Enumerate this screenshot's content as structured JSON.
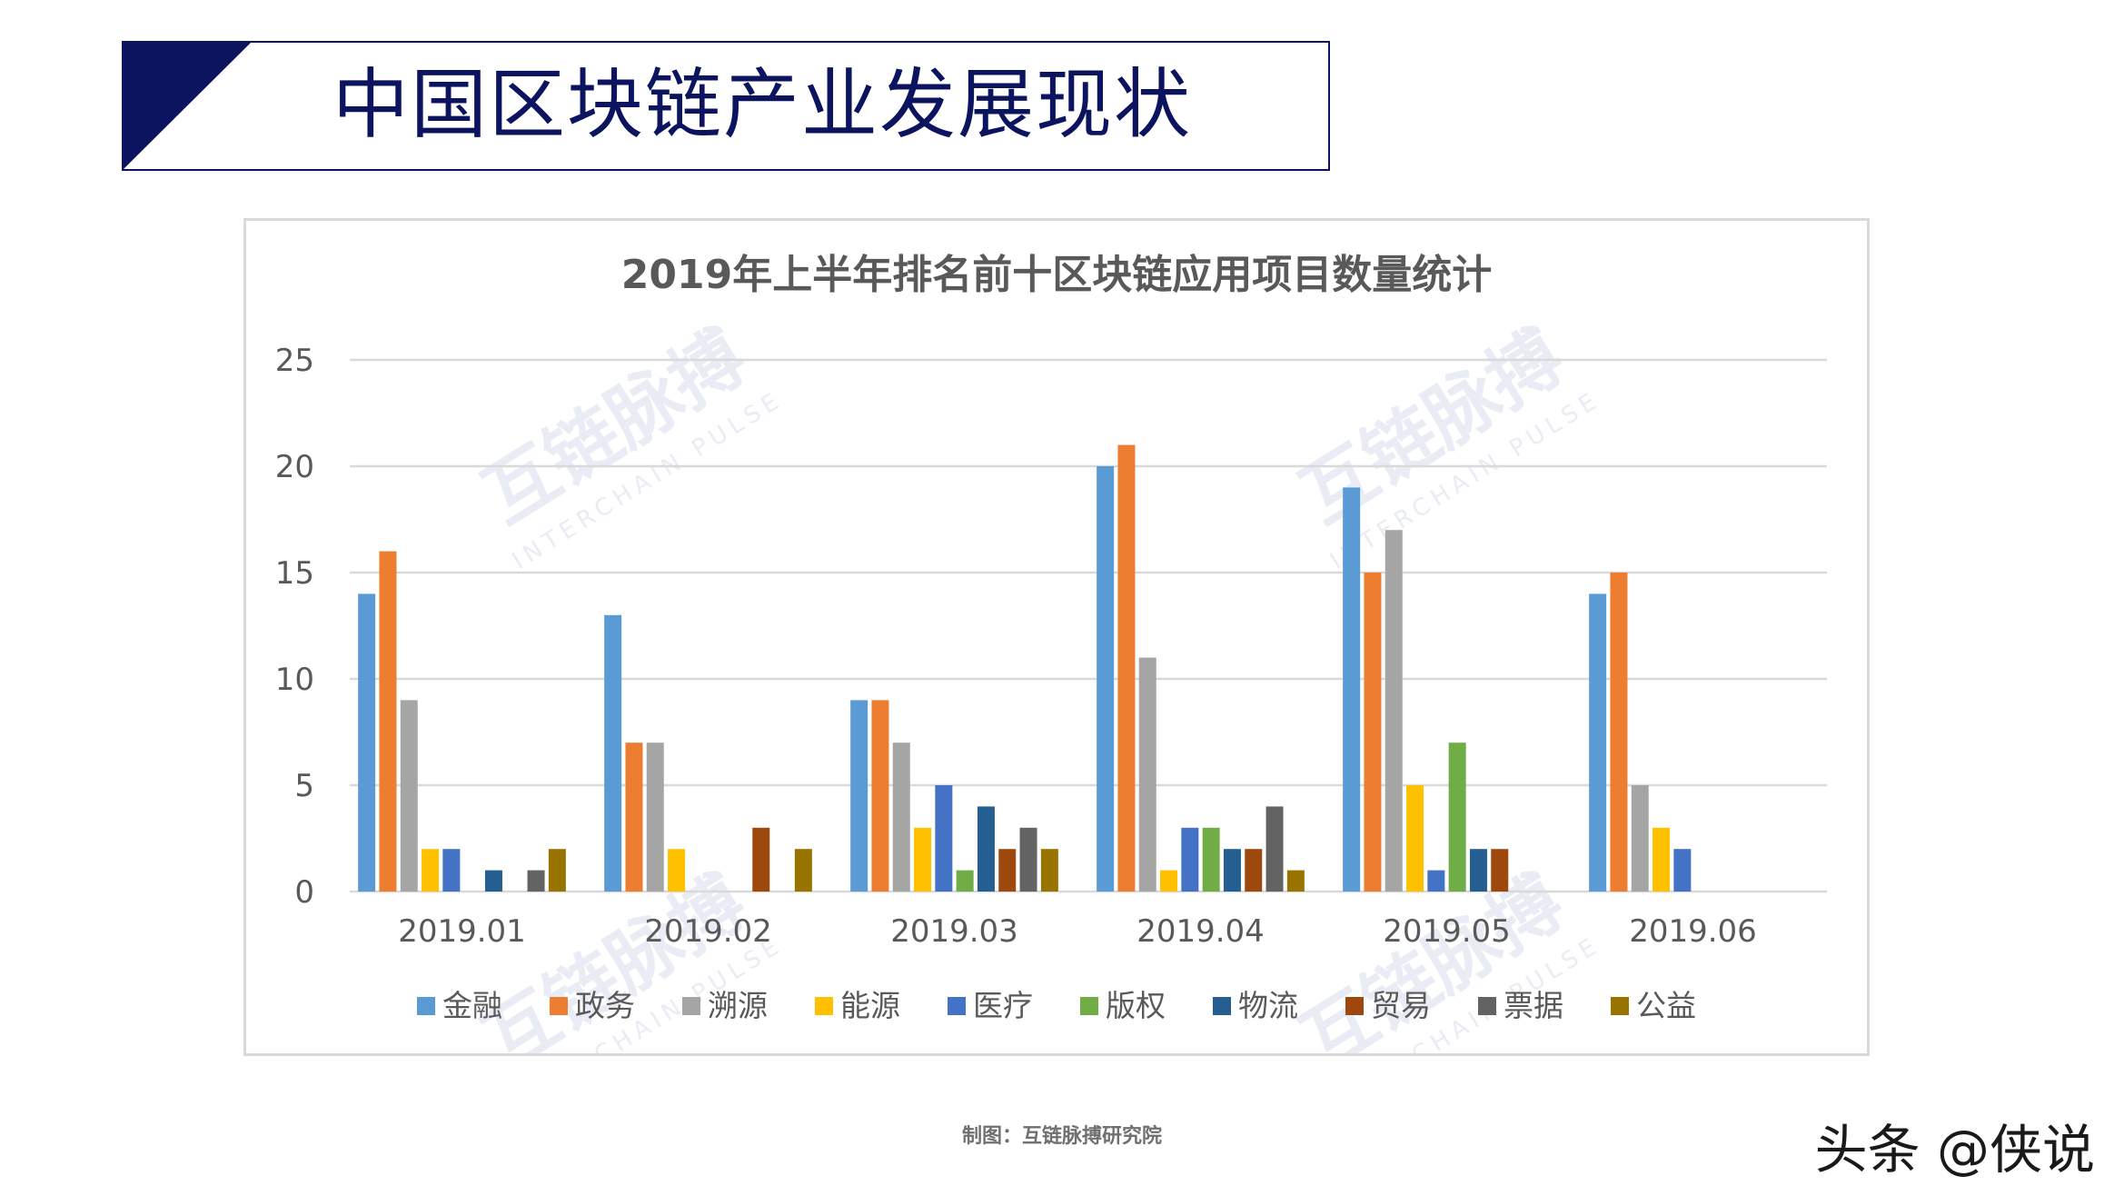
{
  "header": {
    "title": "中国区块链产业发展现状"
  },
  "footer": {
    "source": "制图：互链脉搏研究院",
    "credit": "头条 @侠说"
  },
  "chart_data": {
    "type": "bar",
    "title": "2019年上半年排名前十区块链应用项目数量统计",
    "xlabel": "",
    "ylabel": "",
    "ylim": [
      0,
      25
    ],
    "yticks": [
      0,
      5,
      10,
      15,
      20,
      25
    ],
    "grid": true,
    "legend_position": "bottom",
    "categories": [
      "2019.01",
      "2019.02",
      "2019.03",
      "2019.04",
      "2019.05",
      "2019.06"
    ],
    "series": [
      {
        "name": "金融",
        "color": "#5b9bd5",
        "values": [
          14,
          13,
          9,
          20,
          19,
          14
        ]
      },
      {
        "name": "政务",
        "color": "#ed7d31",
        "values": [
          16,
          7,
          9,
          21,
          15,
          15
        ]
      },
      {
        "name": "溯源",
        "color": "#a5a5a5",
        "values": [
          9,
          7,
          7,
          11,
          17,
          5
        ]
      },
      {
        "name": "能源",
        "color": "#ffc000",
        "values": [
          2,
          2,
          3,
          1,
          5,
          3
        ]
      },
      {
        "name": "医疗",
        "color": "#4472c4",
        "values": [
          2,
          0,
          5,
          3,
          1,
          2
        ]
      },
      {
        "name": "版权",
        "color": "#70ad47",
        "values": [
          0,
          0,
          1,
          3,
          7,
          0
        ]
      },
      {
        "name": "物流",
        "color": "#255e91",
        "values": [
          1,
          0,
          4,
          2,
          2,
          0
        ]
      },
      {
        "name": "贸易",
        "color": "#9e480e",
        "values": [
          0,
          3,
          2,
          2,
          2,
          0
        ]
      },
      {
        "name": "票据",
        "color": "#636363",
        "values": [
          1,
          0,
          3,
          4,
          0,
          0
        ]
      },
      {
        "name": "公益",
        "color": "#997300",
        "values": [
          2,
          2,
          2,
          1,
          0,
          0
        ]
      }
    ]
  },
  "watermark": {
    "brand": "互链脉搏",
    "subtitle": "INTERCHAIN PULSE"
  }
}
